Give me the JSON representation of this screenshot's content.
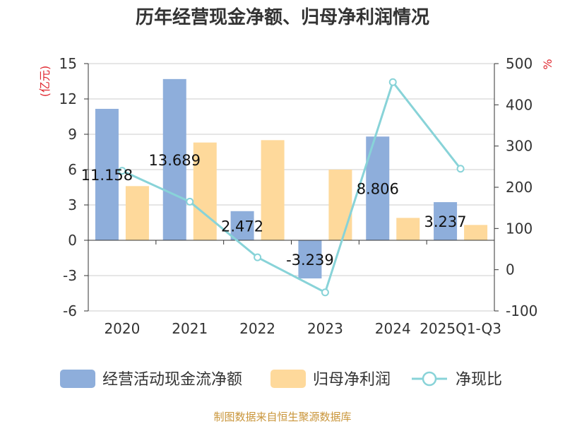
{
  "title": "历年经营现金净额、归母净利润情况",
  "source": "制图数据来自恒生聚源数据库",
  "chart_data": {
    "type": "bar",
    "categories": [
      "2020",
      "2021",
      "2022",
      "2023",
      "2024",
      "2025Q1-Q3"
    ],
    "series": [
      {
        "name": "经营活动现金流净额",
        "type": "bar",
        "axis": "left",
        "color": "#8eaedb",
        "values": [
          11.158,
          13.689,
          2.472,
          -3.239,
          8.806,
          3.237
        ],
        "labels": [
          "11.158",
          "13.689",
          "2.472",
          "-3.239",
          "8.806",
          "3.237"
        ]
      },
      {
        "name": "归母净利润",
        "type": "bar",
        "axis": "left",
        "color": "#fed99b",
        "values": [
          4.6,
          8.3,
          8.5,
          6.0,
          1.9,
          1.3
        ]
      },
      {
        "name": "净现比",
        "type": "line",
        "axis": "right",
        "color": "#88d3d8",
        "values": [
          240,
          165,
          30,
          -55,
          455,
          245
        ]
      }
    ],
    "left_axis": {
      "unit": "(亿元)",
      "min": -6,
      "max": 15,
      "ticks": [
        15,
        12,
        9,
        6,
        3,
        0,
        -3,
        -6
      ]
    },
    "right_axis": {
      "unit": "%",
      "min": -100,
      "max": 500,
      "ticks": [
        500,
        400,
        300,
        200,
        100,
        0,
        -100
      ]
    },
    "grid": true,
    "legend_position": "bottom"
  }
}
